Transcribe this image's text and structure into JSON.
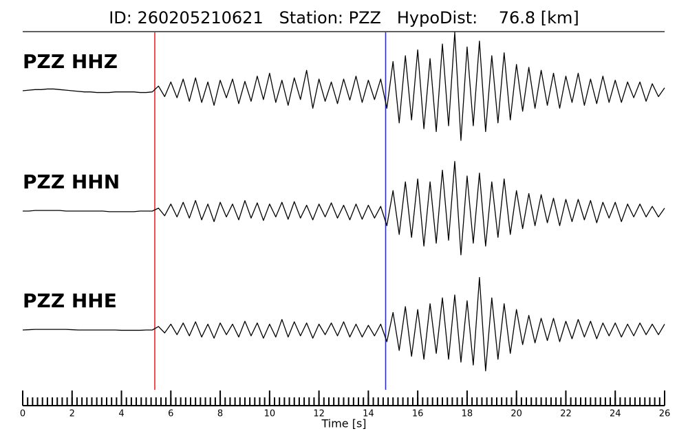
{
  "chart_data": {
    "type": "line",
    "title": "ID: 260205210621   Station: PZZ   HypoDist:    76.8 [km]",
    "xlabel": "Time [s]",
    "label_color": "#4c9a0e",
    "xlim": [
      0,
      26
    ],
    "xticks": [
      0,
      2,
      4,
      6,
      8,
      10,
      12,
      14,
      16,
      18,
      20,
      22,
      24,
      26
    ],
    "xminor": 0.2,
    "ylim": [
      -1,
      1
    ],
    "markers": [
      {
        "x": 5.35,
        "color": "#e8242b"
      },
      {
        "x": 14.7,
        "color": "#2b2bc8"
      }
    ],
    "x": [
      0,
      0.25,
      0.5,
      0.75,
      1,
      1.25,
      1.5,
      1.75,
      2,
      2.25,
      2.5,
      2.75,
      3,
      3.25,
      3.5,
      3.75,
      4,
      4.25,
      4.5,
      4.75,
      5,
      5.25,
      5.5,
      5.75,
      6,
      6.25,
      6.5,
      6.75,
      7,
      7.25,
      7.5,
      7.75,
      8,
      8.25,
      8.5,
      8.75,
      9,
      9.25,
      9.5,
      9.75,
      10,
      10.25,
      10.5,
      10.75,
      11,
      11.25,
      11.5,
      11.75,
      12,
      12.25,
      12.5,
      12.75,
      13,
      13.25,
      13.5,
      13.75,
      14,
      14.25,
      14.5,
      14.75,
      15,
      15.25,
      15.5,
      15.75,
      16,
      16.25,
      16.5,
      16.75,
      17,
      17.25,
      17.5,
      17.75,
      18,
      18.25,
      18.5,
      18.75,
      19,
      19.25,
      19.5,
      19.75,
      20,
      20.25,
      20.5,
      20.75,
      21,
      21.25,
      21.5,
      21.75,
      22,
      22.25,
      22.5,
      22.75,
      23,
      23.25,
      23.5,
      23.75,
      24,
      24.25,
      24.5,
      24.75,
      25,
      25.25,
      25.5,
      25.75,
      26
    ],
    "series": [
      {
        "name": "PZZ HHZ",
        "color": "#000000",
        "values": [
          0,
          0.01,
          0.02,
          0.02,
          0.03,
          0.03,
          0.02,
          0.01,
          0,
          -0.01,
          -0.02,
          -0.02,
          -0.03,
          -0.03,
          -0.03,
          -0.02,
          -0.02,
          -0.02,
          -0.02,
          -0.03,
          -0.03,
          -0.02,
          0.08,
          -0.1,
          0.15,
          -0.12,
          0.2,
          -0.18,
          0.22,
          -0.2,
          0.15,
          -0.25,
          0.18,
          -0.12,
          0.2,
          -0.22,
          0.16,
          -0.18,
          0.25,
          -0.15,
          0.3,
          -0.2,
          0.18,
          -0.25,
          0.22,
          -0.15,
          0.35,
          -0.3,
          0.2,
          -0.18,
          0.15,
          -0.22,
          0.2,
          -0.16,
          0.25,
          -0.2,
          0.18,
          -0.15,
          0.2,
          -0.3,
          0.5,
          -0.55,
          0.6,
          -0.5,
          0.7,
          -0.65,
          0.55,
          -0.7,
          0.8,
          -0.6,
          1.0,
          -0.85,
          0.75,
          -0.6,
          0.85,
          -0.7,
          0.6,
          -0.55,
          0.65,
          -0.5,
          0.45,
          -0.35,
          0.4,
          -0.3,
          0.35,
          -0.25,
          0.3,
          -0.3,
          0.25,
          -0.2,
          0.3,
          -0.25,
          0.2,
          -0.22,
          0.25,
          -0.2,
          0.18,
          -0.2,
          0.15,
          -0.12,
          0.15,
          -0.18,
          0.12,
          -0.1,
          0.05
        ]
      },
      {
        "name": "PZZ HHN",
        "color": "#000000",
        "values": [
          0,
          0,
          0.01,
          0.01,
          0.01,
          0.01,
          0.01,
          0,
          0,
          0,
          0,
          0,
          0,
          0,
          -0.01,
          -0.01,
          -0.01,
          -0.01,
          -0.01,
          0,
          0,
          0,
          0.05,
          -0.08,
          0.12,
          -0.1,
          0.15,
          -0.12,
          0.18,
          -0.15,
          0.12,
          -0.18,
          0.15,
          -0.1,
          0.12,
          -0.15,
          0.18,
          -0.12,
          0.14,
          -0.16,
          0.12,
          -0.1,
          0.15,
          -0.14,
          0.16,
          -0.12,
          0.1,
          -0.15,
          0.12,
          -0.1,
          0.14,
          -0.12,
          0.1,
          -0.15,
          0.12,
          -0.14,
          0.1,
          -0.12,
          0.08,
          -0.25,
          0.35,
          -0.4,
          0.5,
          -0.45,
          0.55,
          -0.6,
          0.5,
          -0.55,
          0.7,
          -0.5,
          0.85,
          -0.75,
          0.6,
          -0.55,
          0.65,
          -0.6,
          0.5,
          -0.45,
          0.55,
          -0.4,
          0.35,
          -0.3,
          0.3,
          -0.25,
          0.28,
          -0.2,
          0.22,
          -0.25,
          0.2,
          -0.18,
          0.2,
          -0.15,
          0.18,
          -0.2,
          0.15,
          -0.12,
          0.15,
          -0.18,
          0.12,
          -0.1,
          0.12,
          -0.1,
          0.08,
          -0.1,
          0.05
        ]
      },
      {
        "name": "PZZ HHE",
        "color": "#000000",
        "values": [
          0,
          0.005,
          0.01,
          0.01,
          0.01,
          0.01,
          0.01,
          0.01,
          0.005,
          0,
          0,
          0,
          0,
          0,
          0,
          0,
          -0.005,
          -0.005,
          -0.005,
          -0.005,
          0,
          0,
          0.06,
          -0.05,
          0.1,
          -0.08,
          0.12,
          -0.1,
          0.14,
          -0.12,
          0.1,
          -0.14,
          0.12,
          -0.08,
          0.1,
          -0.12,
          0.15,
          -0.1,
          0.12,
          -0.14,
          0.1,
          -0.12,
          0.18,
          -0.12,
          0.14,
          -0.1,
          0.12,
          -0.14,
          0.1,
          -0.08,
          0.12,
          -0.1,
          0.14,
          -0.12,
          0.1,
          -0.12,
          0.08,
          -0.1,
          0.1,
          -0.2,
          0.3,
          -0.35,
          0.4,
          -0.45,
          0.35,
          -0.5,
          0.45,
          -0.4,
          0.55,
          -0.5,
          0.6,
          -0.55,
          0.5,
          -0.6,
          0.9,
          -0.7,
          0.55,
          -0.5,
          0.45,
          -0.4,
          0.35,
          -0.25,
          0.25,
          -0.22,
          0.2,
          -0.18,
          0.2,
          -0.2,
          0.15,
          -0.15,
          0.18,
          -0.12,
          0.15,
          -0.15,
          0.12,
          -0.1,
          0.12,
          -0.12,
          0.1,
          -0.1,
          0.12,
          -0.08,
          0.1,
          -0.08,
          0.1
        ]
      }
    ]
  }
}
